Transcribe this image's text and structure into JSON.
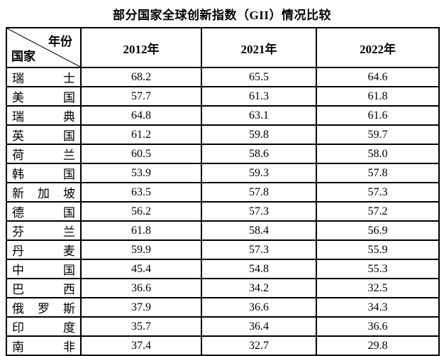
{
  "title": "部分国家全球创新指数（GII）情况比较",
  "table_colors": {
    "border": "#000000",
    "text": "#000000",
    "background": "#ffffff"
  },
  "chart_data": {
    "type": "table",
    "title": "部分国家全球创新指数（GII）情况比较",
    "corner_labels": {
      "top_right": "年份",
      "bottom_left": "国家"
    },
    "columns": [
      "2012年",
      "2021年",
      "2022年"
    ],
    "row_categories": [
      "瑞士",
      "美国",
      "瑞典",
      "英国",
      "荷兰",
      "韩国",
      "新加坡",
      "德国",
      "芬兰",
      "丹麦",
      "中国",
      "巴西",
      "俄罗斯",
      "印度",
      "南非"
    ],
    "values": [
      [
        68.2,
        65.5,
        64.6
      ],
      [
        57.7,
        61.3,
        61.8
      ],
      [
        64.8,
        63.1,
        61.6
      ],
      [
        61.2,
        59.8,
        59.7
      ],
      [
        60.5,
        58.6,
        58.0
      ],
      [
        53.9,
        59.3,
        57.8
      ],
      [
        63.5,
        57.8,
        57.3
      ],
      [
        56.2,
        57.3,
        57.2
      ],
      [
        61.8,
        58.4,
        56.9
      ],
      [
        59.9,
        57.3,
        55.9
      ],
      [
        45.4,
        54.8,
        55.3
      ],
      [
        36.6,
        34.2,
        32.5
      ],
      [
        37.9,
        36.6,
        34.3
      ],
      [
        35.7,
        36.4,
        36.6
      ],
      [
        37.4,
        32.7,
        29.8
      ]
    ],
    "value_decimals": 1,
    "grid": true,
    "legend_position": "none"
  }
}
